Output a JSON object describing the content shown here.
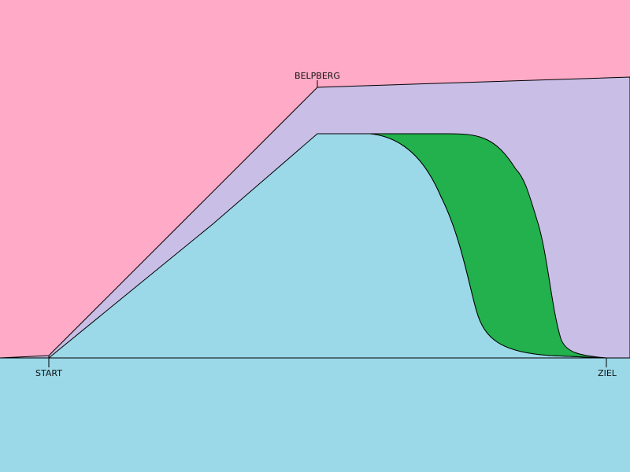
{
  "labels": {
    "peak": "BELPBERG",
    "start": "START",
    "finish": "ZIEL"
  }
}
